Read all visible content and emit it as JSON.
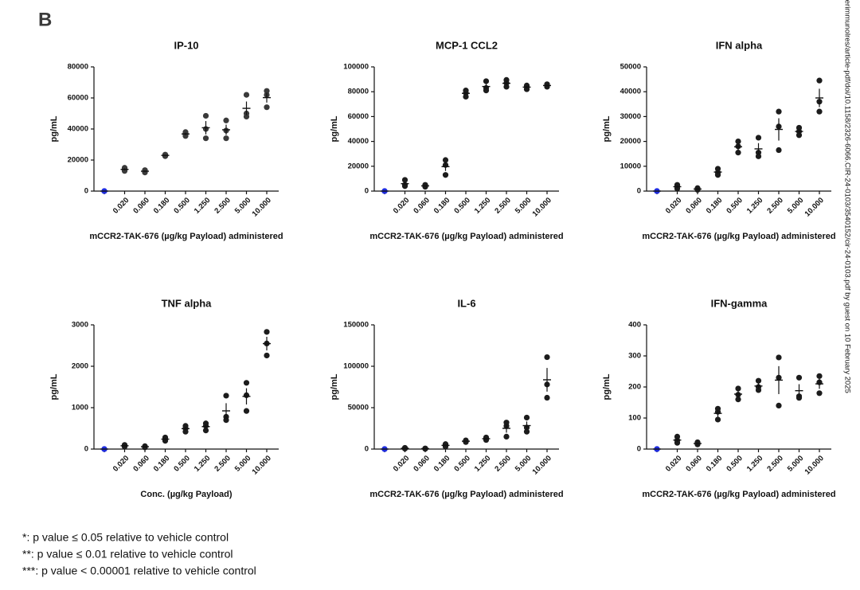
{
  "panel_label": "B",
  "side_text": "cerimmunolres/article-pdf/doi/10.1158/2326-6066.CIR-24-0103/3540152/cir-24-0103.pdf by guest on 10 February 2025",
  "footnotes": [
    "*: p value ≤ 0.05 relative to vehicle control",
    "**: p value ≤ 0.01 relative to vehicle control",
    "***: p value < 0.00001 relative to vehicle control"
  ],
  "chart_data": [
    {
      "type": "scatter",
      "title": "IP-10",
      "y_label": "pg/mL",
      "x_label": "mCCR2-TAK-676 (µg/kg Payload) administered",
      "categories": [
        null,
        "0.020",
        "0.060",
        "0.180",
        "0.500",
        "1.250",
        "2.500",
        "5.000",
        "10.000"
      ],
      "points": [
        [
          0,
          0,
          0
        ],
        [
          13000,
          14000,
          15000
        ],
        [
          12000,
          13000,
          13500
        ],
        [
          22500,
          23000,
          23500
        ],
        [
          35500,
          37000,
          38000
        ],
        [
          34000,
          40000,
          48500
        ],
        [
          34000,
          39000,
          45500
        ],
        [
          48000,
          50000,
          62000
        ],
        [
          54000,
          62000,
          64500
        ]
      ],
      "means": [
        0,
        14000,
        12800,
        23000,
        36800,
        40800,
        39500,
        53300,
        60200
      ],
      "errors": [
        0,
        600,
        450,
        300,
        750,
        4300,
        3300,
        4400,
        3200
      ],
      "ylim": [
        0,
        80000
      ],
      "yticks": [
        0,
        20000,
        40000,
        60000,
        80000
      ],
      "point_color": "#3a3a3a",
      "vehicle_color": "#1f2de0"
    },
    {
      "type": "scatter",
      "title": "MCP-1 CCL2",
      "y_label": "pg/mL",
      "x_label": "mCCR2-TAK-676 (µg/kg Payload) administered",
      "categories": [
        null,
        "0.020",
        "0.060",
        "0.180",
        "0.500",
        "1.250",
        "2.500",
        "5.000",
        "10.000"
      ],
      "points": [
        [
          0,
          0,
          0
        ],
        [
          4000,
          5000,
          9000
        ],
        [
          3500,
          4000,
          5000
        ],
        [
          13000,
          21000,
          25000
        ],
        [
          76000,
          79000,
          81000
        ],
        [
          81000,
          83000,
          88500
        ],
        [
          84000,
          87000,
          89500
        ],
        [
          82000,
          84000,
          85000
        ],
        [
          84000,
          85000,
          86000
        ]
      ],
      "means": [
        0,
        6000,
        4200,
        19700,
        78700,
        84200,
        86800,
        83700,
        85000
      ],
      "errors": [
        0,
        1500,
        450,
        3500,
        1450,
        2300,
        1600,
        900,
        600
      ],
      "ylim": [
        0,
        100000
      ],
      "yticks": [
        0,
        20000,
        40000,
        60000,
        80000,
        100000
      ],
      "point_color": "#1c1c1c",
      "vehicle_color": "#1f2de0"
    },
    {
      "type": "scatter",
      "title": "IFN alpha",
      "y_label": "pg/mL",
      "x_label": "mCCR2-TAK-676 (µg/kg Payload) administered",
      "categories": [
        null,
        "0.020",
        "0.060",
        "0.180",
        "0.500",
        "1.250",
        "2.500",
        "5.000",
        "10.000"
      ],
      "points": [
        [
          0,
          0,
          0
        ],
        [
          1000,
          1800,
          2500
        ],
        [
          500,
          800,
          1200
        ],
        [
          6500,
          7500,
          9000
        ],
        [
          15500,
          18000,
          20000
        ],
        [
          14000,
          15500,
          21500
        ],
        [
          16500,
          26000,
          32000
        ],
        [
          22500,
          24000,
          25500
        ],
        [
          32000,
          36000,
          44500
        ]
      ],
      "means": [
        0,
        1770,
        830,
        7670,
        17830,
        17000,
        24830,
        24000,
        37500
      ],
      "errors": [
        0,
        430,
        200,
        730,
        1300,
        2300,
        4500,
        870,
        3700
      ],
      "ylim": [
        0,
        50000
      ],
      "yticks": [
        0,
        10000,
        20000,
        30000,
        40000,
        50000
      ],
      "point_color": "#1c1c1c",
      "vehicle_color": "#1f2de0"
    },
    {
      "type": "scatter",
      "title": "TNF alpha",
      "y_label": "pg/mL",
      "x_label": "Conc. (µg/kg Payload)",
      "categories": [
        null,
        "0.020",
        "0.060",
        "0.180",
        "0.500",
        "1.250",
        "2.500",
        "5.000",
        "10.000"
      ],
      "points": [
        [
          0,
          0,
          0
        ],
        [
          60,
          80,
          100
        ],
        [
          40,
          60,
          70
        ],
        [
          200,
          240,
          280
        ],
        [
          420,
          500,
          560
        ],
        [
          450,
          560,
          620
        ],
        [
          700,
          780,
          1290
        ],
        [
          920,
          1300,
          1600
        ],
        [
          2260,
          2550,
          2830
        ]
      ],
      "means": [
        0,
        80,
        57,
        240,
        493,
        543,
        923,
        1273,
        2547
      ],
      "errors": [
        0,
        12,
        9,
        23,
        40,
        50,
        185,
        196,
        165
      ],
      "ylim": [
        0,
        3000
      ],
      "yticks": [
        0,
        1000,
        2000,
        3000
      ],
      "point_color": "#1c1c1c",
      "vehicle_color": "#1f2de0"
    },
    {
      "type": "scatter",
      "title": "IL-6",
      "y_label": "pg/mL",
      "x_label": "mCCR2-TAK-676 (µg/kg Payload) administered",
      "categories": [
        null,
        "0.020",
        "0.060",
        "0.180",
        "0.500",
        "1.250",
        "2.500",
        "5.000",
        "10.000"
      ],
      "points": [
        [
          0,
          0,
          0
        ],
        [
          500,
          1000,
          1500
        ],
        [
          300,
          500,
          800
        ],
        [
          3000,
          4500,
          6000
        ],
        [
          8500,
          9500,
          10500
        ],
        [
          11000,
          12500,
          14000
        ],
        [
          15000,
          28000,
          32000
        ],
        [
          21000,
          26000,
          38000
        ],
        [
          62000,
          78000,
          111000
        ]
      ],
      "means": [
        0,
        1000,
        533,
        4500,
        9500,
        12500,
        25000,
        28333,
        83667
      ],
      "errors": [
        0,
        290,
        150,
        870,
        580,
        870,
        5200,
        5000,
        14300
      ],
      "ylim": [
        0,
        150000
      ],
      "yticks": [
        0,
        50000,
        100000,
        150000
      ],
      "point_color": "#1c1c1c",
      "vehicle_color": "#1f2de0"
    },
    {
      "type": "scatter",
      "title": "IFN-gamma",
      "y_label": "pg/mL",
      "x_label": "mCCR2-TAK-676 (µg/kg Payload) administered",
      "categories": [
        null,
        "0.020",
        "0.060",
        "0.180",
        "0.500",
        "1.250",
        "2.500",
        "5.000",
        "10.000"
      ],
      "points": [
        [
          0,
          0,
          0
        ],
        [
          20,
          28,
          40
        ],
        [
          15,
          18,
          22
        ],
        [
          95,
          120,
          130
        ],
        [
          160,
          175,
          195
        ],
        [
          190,
          200,
          220
        ],
        [
          140,
          230,
          295
        ],
        [
          165,
          170,
          230
        ],
        [
          180,
          215,
          235
        ]
      ],
      "means": [
        0,
        29,
        18,
        115,
        177,
        203,
        222,
        188,
        210
      ],
      "errors": [
        0,
        6,
        2,
        11,
        10,
        9,
        45,
        21,
        16
      ],
      "ylim": [
        0,
        400
      ],
      "yticks": [
        0,
        100,
        200,
        300,
        400
      ],
      "point_color": "#1c1c1c",
      "vehicle_color": "#1f2de0"
    }
  ]
}
